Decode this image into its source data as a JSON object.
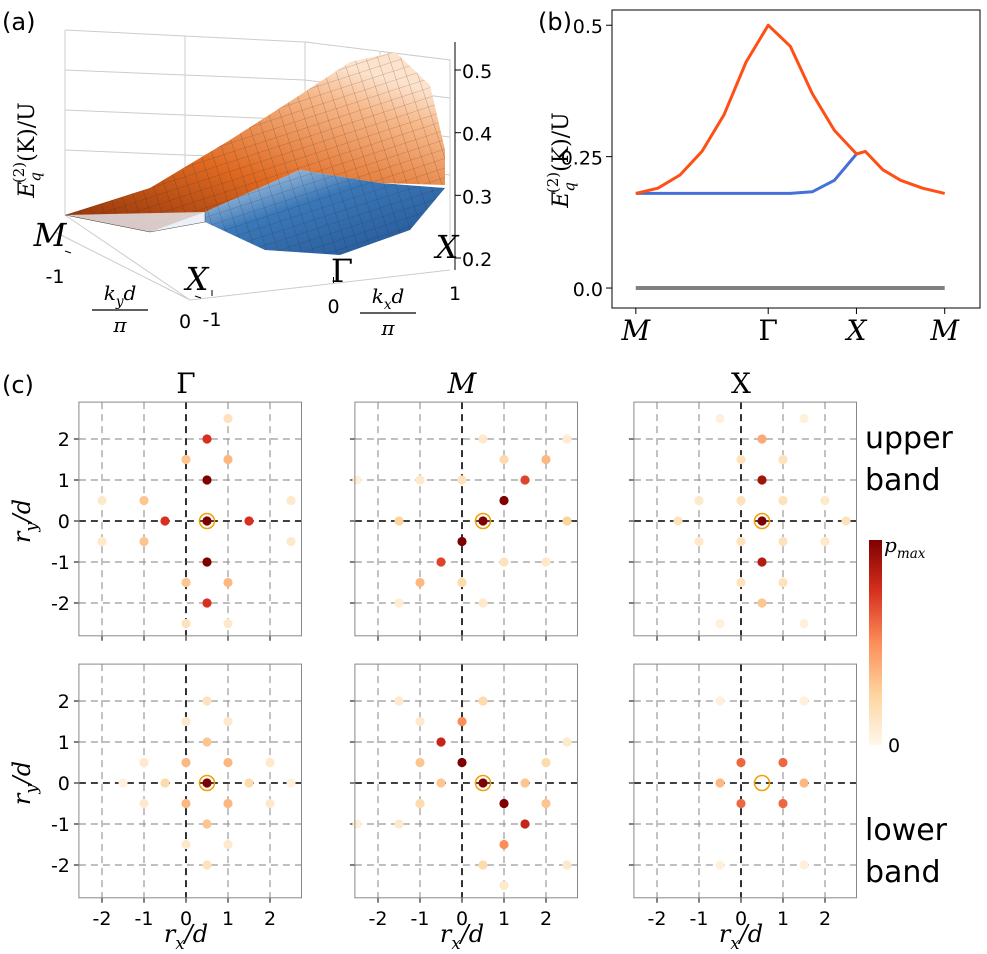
{
  "chart_data": [
    {
      "type": "surface3d",
      "panel_label": "(a)",
      "zlabel": {
        "base": "E",
        "sub": "q",
        "sup": "(2)",
        "rest": "(K)/U"
      },
      "zlim": [
        0.18,
        0.548
      ],
      "zticks": [
        0.2,
        0.3,
        0.4,
        0.5
      ],
      "xlim": [
        -1,
        1
      ],
      "xticks": [
        -1,
        0,
        1
      ],
      "ylim": [
        -1,
        0
      ],
      "yticks": [
        -1,
        0
      ],
      "xlabel": {
        "base": "k",
        "sub": "x",
        "rest": "d",
        "denominator": "π"
      },
      "ylabel": {
        "base": "k",
        "sub": "y",
        "rest": "d",
        "denominator": "π"
      },
      "point_labels": [
        "M",
        "X",
        "Γ",
        "X"
      ]
    },
    {
      "type": "line",
      "panel_label": "(b)",
      "ylabel": {
        "base": "E",
        "sub": "q",
        "sup": "(2)",
        "rest": "(K)/U"
      },
      "x": [
        0,
        0.25,
        0.5,
        0.75,
        1.0,
        1.25,
        1.5,
        1.75,
        2.0,
        2.25,
        2.5,
        2.6,
        2.8,
        3.0,
        3.25,
        3.5
      ],
      "series": [
        {
          "color": "#ff4f14",
          "values": [
            0.18,
            0.19,
            0.215,
            0.26,
            0.33,
            0.43,
            0.5,
            0.46,
            0.37,
            0.3,
            0.255,
            0.26,
            0.225,
            0.205,
            0.19,
            0.18
          ]
        },
        {
          "color": "#4470d8",
          "values": [
            0.18,
            0.18,
            0.18,
            0.18,
            0.18,
            0.18,
            0.18,
            0.18,
            0.183,
            0.205,
            0.255,
            null,
            null,
            null,
            null,
            null
          ]
        },
        {
          "color": "#808080",
          "values": [
            0,
            0,
            0,
            0,
            0,
            0,
            0,
            0,
            0,
            0,
            0,
            0,
            0,
            0,
            0,
            0
          ]
        }
      ],
      "xlim": [
        -0.27,
        3.9
      ],
      "ylim": [
        -0.038,
        0.529
      ],
      "xticks": [
        {
          "value": 0,
          "label": "M"
        },
        {
          "value": 1.5,
          "label": "Γ"
        },
        {
          "value": 2.5,
          "label": "X"
        },
        {
          "value": 3.5,
          "label": "M"
        }
      ],
      "yticks": [
        {
          "value": 0,
          "label": "0.0"
        },
        0.25,
        0.5
      ]
    },
    {
      "type": "scatter",
      "panel_label": "(c)",
      "xlim": [
        -2.55,
        2.75
      ],
      "ylim": [
        -2.8,
        2.9
      ],
      "xticks": [
        -2,
        -1,
        0,
        1,
        2
      ],
      "yticks": [
        -2,
        -1,
        0,
        1,
        2
      ],
      "xlabel": {
        "base": "r",
        "sub": "x",
        "rest": "/d"
      },
      "ylabel": {
        "base": "r",
        "sub": "y",
        "rest": "/d"
      },
      "column_titles": [
        "Γ",
        "M",
        "X"
      ],
      "row_labels": [
        [
          "upper",
          "band"
        ],
        [
          "lower",
          "band"
        ]
      ],
      "colorbar": {
        "min": 0,
        "max": 1,
        "max_label": {
          "base": "p",
          "sub": "max"
        },
        "colors": [
          "#fff7ec",
          "#fdd49e",
          "#fc8d59",
          "#d7301f",
          "#7f0000"
        ]
      },
      "reference_site": {
        "x": 0.5,
        "y": 0,
        "color": "#f0a000"
      },
      "panels": [
        {
          "x": [
            0.5,
            1,
            1,
            0.5,
            -1,
            -2,
            -0.5,
            1.5,
            0.5,
            2.5,
            -1,
            -2,
            0.5,
            1,
            0.5,
            0,
            0,
            1,
            0,
            2.5
          ],
          "y": [
            2,
            2.5,
            1.5,
            1,
            0.5,
            0.5,
            0,
            0,
            0,
            0.5,
            -0.5,
            -0.5,
            -1,
            -1.5,
            -2,
            -1.5,
            -2.5,
            -2.5,
            1.5,
            -0.5
          ],
          "p": [
            0.75,
            0.15,
            0.35,
            1.0,
            0.3,
            0.1,
            0.75,
            0.75,
            1.0,
            0.1,
            0.3,
            0.1,
            1.0,
            0.35,
            0.75,
            0.3,
            0.15,
            0.1,
            0.3,
            0.1
          ]
        },
        {
          "x": [
            0.5,
            1,
            0,
            1.5,
            -0.5,
            2,
            -1,
            1,
            0,
            -1.5,
            2.5,
            0.5,
            0.5,
            2.5,
            -1.5,
            -1,
            2,
            0,
            1,
            -2.5
          ],
          "y": [
            0,
            0.5,
            -0.5,
            1,
            -1,
            1.5,
            -1.5,
            1.5,
            -1.5,
            0,
            0,
            2,
            -2,
            2,
            -2,
            1,
            -1,
            1,
            -1,
            1
          ],
          "p": [
            1.0,
            1.0,
            1.0,
            0.7,
            0.7,
            0.35,
            0.35,
            0.2,
            0.2,
            0.25,
            0.25,
            0.1,
            0.1,
            0.08,
            0.08,
            0.1,
            0.1,
            0.15,
            0.15,
            0.05
          ]
        },
        {
          "x": [
            0.5,
            0.5,
            0.5,
            0.5,
            0.5,
            0,
            1,
            0,
            1,
            -1,
            2,
            -1,
            2,
            -1.5,
            2.5,
            0,
            1,
            0,
            1,
            -0.5,
            1.5,
            -0.5,
            1.5
          ],
          "y": [
            2,
            1,
            0,
            -1,
            -2,
            1.5,
            1.5,
            -1.5,
            -1.5,
            0.5,
            0.5,
            -0.5,
            -0.5,
            0,
            0,
            0.5,
            0.5,
            -0.5,
            -0.5,
            2.5,
            2.5,
            -2.5,
            -2.5
          ],
          "p": [
            0.4,
            0.9,
            1.0,
            0.85,
            0.3,
            0.15,
            0.15,
            0.15,
            0.15,
            0.1,
            0.1,
            0.1,
            0.1,
            0.15,
            0.15,
            0.15,
            0.15,
            0.15,
            0.15,
            0.05,
            0.05,
            0.05,
            0.05
          ]
        },
        {
          "x": [
            0.5,
            0,
            1,
            0,
            1,
            0.5,
            0.5,
            0.5,
            0.5,
            -0.5,
            1.5,
            -1,
            2,
            -1,
            2,
            0,
            1,
            0,
            1,
            2.5,
            -1.5
          ],
          "y": [
            0,
            0.5,
            0.5,
            -0.5,
            -0.5,
            1,
            -1,
            2,
            -2,
            0,
            0,
            0.5,
            0.5,
            -0.5,
            -0.5,
            1.5,
            1.5,
            -1.5,
            -1.5,
            0,
            0
          ],
          "p": [
            1.0,
            0.35,
            0.35,
            0.35,
            0.35,
            0.3,
            0.3,
            0.15,
            0.15,
            0.2,
            0.2,
            0.1,
            0.1,
            0.1,
            0.1,
            0.1,
            0.1,
            0.1,
            0.1,
            0.05,
            0.05
          ]
        },
        {
          "x": [
            0.5,
            0,
            1,
            -0.5,
            1.5,
            0,
            1,
            -1,
            2,
            1.5,
            -0.5,
            0.5,
            0.5,
            -1,
            2,
            -1.5,
            2.5,
            -1.5,
            2.5,
            -2.5,
            -1,
            1
          ],
          "y": [
            0,
            0.5,
            -0.5,
            1,
            -1,
            1.5,
            -1.5,
            0.5,
            -0.5,
            0,
            0,
            2,
            -2,
            -0.5,
            0.5,
            -1,
            1,
            2,
            -2,
            -1,
            1.5,
            -2.5
          ],
          "p": [
            1.0,
            1.0,
            1.0,
            0.8,
            0.8,
            0.5,
            0.5,
            0.3,
            0.3,
            0.3,
            0.3,
            0.2,
            0.2,
            0.2,
            0.2,
            0.1,
            0.1,
            0.1,
            0.1,
            0.05,
            0.1,
            0.1
          ]
        },
        {
          "x": [
            0,
            1,
            0,
            1,
            -0.5,
            1.5,
            -0.5,
            1.5,
            -0.5,
            1.5
          ],
          "y": [
            0.5,
            0.5,
            -0.5,
            -0.5,
            0,
            0,
            2,
            2,
            -2,
            -2
          ],
          "p": [
            0.6,
            0.6,
            0.6,
            0.6,
            0.35,
            0.35,
            0.05,
            0.05,
            0.05,
            0.05
          ]
        }
      ]
    }
  ]
}
